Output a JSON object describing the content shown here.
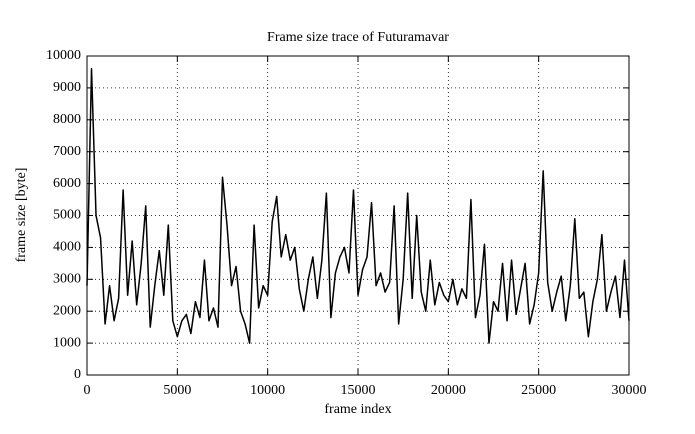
{
  "chart_data": {
    "type": "line",
    "title": "Frame size trace of Futuramavar",
    "xlabel": "frame index",
    "ylabel": "frame size [byte]",
    "xlim": [
      0,
      30000
    ],
    "ylim": [
      0,
      10000
    ],
    "xticks": [
      0,
      5000,
      10000,
      15000,
      20000,
      25000,
      30000
    ],
    "yticks": [
      0,
      1000,
      2000,
      3000,
      4000,
      5000,
      6000,
      7000,
      8000,
      9000,
      10000
    ],
    "grid": true,
    "x": [
      0,
      250,
      500,
      750,
      1000,
      1250,
      1500,
      1750,
      2000,
      2250,
      2500,
      2750,
      3000,
      3250,
      3500,
      3750,
      4000,
      4250,
      4500,
      4750,
      5000,
      5250,
      5500,
      5750,
      6000,
      6250,
      6500,
      6750,
      7000,
      7250,
      7500,
      7750,
      8000,
      8250,
      8500,
      8750,
      9000,
      9250,
      9500,
      9750,
      10000,
      10250,
      10500,
      10750,
      11000,
      11250,
      11500,
      11750,
      12000,
      12250,
      12500,
      12750,
      13000,
      13250,
      13500,
      13750,
      14000,
      14250,
      14500,
      14750,
      15000,
      15250,
      15500,
      15750,
      16000,
      16250,
      16500,
      16750,
      17000,
      17250,
      17500,
      17750,
      18000,
      18250,
      18500,
      18750,
      19000,
      19250,
      19500,
      19750,
      20000,
      20250,
      20500,
      20750,
      21000,
      21250,
      21500,
      21750,
      22000,
      22250,
      22500,
      22750,
      23000,
      23250,
      23500,
      23750,
      24000,
      24250,
      24500,
      24750,
      25000,
      25250,
      25500,
      25750,
      26000,
      26250,
      26500,
      26750,
      27000,
      27250,
      27500,
      27750,
      28000,
      28250,
      28500,
      28750,
      29000,
      29250,
      29500,
      29750,
      30000
    ],
    "series": [
      {
        "color": "#000000",
        "values": [
          2800,
          9600,
          5000,
          4300,
          1600,
          2800,
          1700,
          2400,
          5800,
          2500,
          4200,
          2200,
          3500,
          5300,
          1500,
          2800,
          3900,
          2500,
          4700,
          1700,
          1200,
          1700,
          1900,
          1300,
          2300,
          1800,
          3600,
          1700,
          2100,
          1500,
          6200,
          4700,
          2800,
          3400,
          2000,
          1600,
          1000,
          4700,
          2100,
          2800,
          2500,
          4800,
          5600,
          3700,
          4400,
          3600,
          4000,
          2700,
          2000,
          3000,
          3700,
          2400,
          3600,
          5700,
          1800,
          3200,
          3700,
          4000,
          3200,
          5800,
          2500,
          3300,
          3700,
          5400,
          2800,
          3200,
          2600,
          2900,
          5300,
          1600,
          3000,
          5700,
          2400,
          5000,
          2600,
          2000,
          3600,
          2200,
          2900,
          2500,
          2300,
          3000,
          2200,
          2700,
          2400,
          5500,
          1800,
          2500,
          4100,
          1000,
          2300,
          2000,
          3500,
          1700,
          3600,
          1900,
          2700,
          3500,
          1600,
          2200,
          3200,
          6400,
          2900,
          2000,
          2600,
          3100,
          1700,
          2800,
          4900,
          2400,
          2600,
          1200,
          2300,
          3000,
          4400,
          2000,
          2600,
          3100,
          1800,
          3600,
          1700
        ]
      }
    ]
  }
}
